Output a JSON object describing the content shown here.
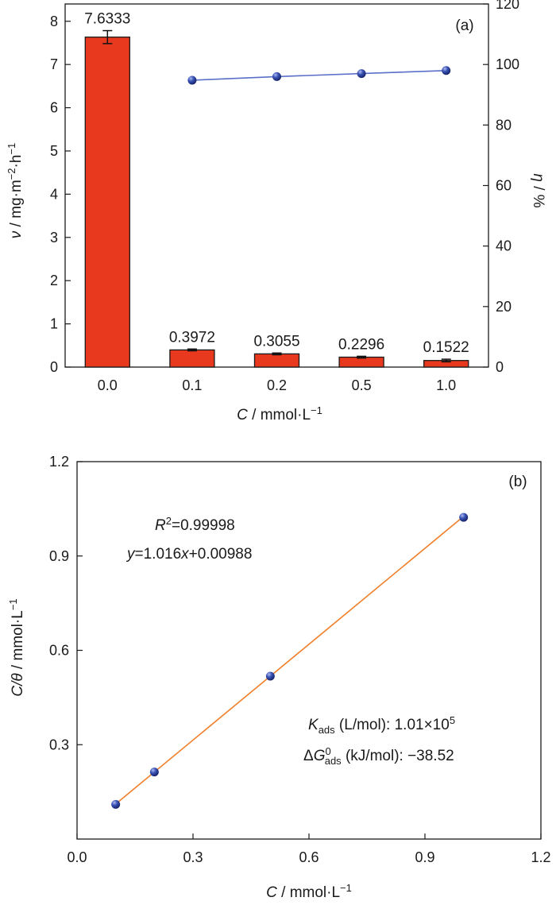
{
  "chart_data": [
    {
      "panel": "(a)",
      "type": "bar",
      "categories": [
        "0.0",
        "0.1",
        "0.2",
        "0.5",
        "1.0"
      ],
      "values": [
        7.6333,
        0.3972,
        0.3055,
        0.2296,
        0.1522
      ],
      "error": [
        0.15,
        0.02,
        0.02,
        0.02,
        0.03
      ],
      "value_labels": [
        "7.6333",
        "0.3972",
        "0.3055",
        "0.2296",
        "0.1522"
      ],
      "bar_color": "#e8381e",
      "xlabel": {
        "symbol": "C",
        "unit": " / mmol·L",
        "exp": "−1"
      },
      "ylabel": {
        "symbol": "ν",
        "unit": " / mg·m",
        "exp1": "−2",
        "mid": "·h",
        "exp2": "−1"
      },
      "ylim": [
        0,
        8.4
      ],
      "yticks": [
        "0",
        "1",
        "2",
        "3",
        "4",
        "5",
        "6",
        "7",
        "8"
      ],
      "secondary": {
        "type": "line",
        "categories": [
          "0.1",
          "0.2",
          "0.5",
          "1.0"
        ],
        "values": [
          94.8,
          96.0,
          97.0,
          98.0
        ],
        "color": "#3a53b5",
        "ylabel": {
          "symbol": "η",
          "unit": " / %"
        },
        "ylim": [
          0,
          120
        ],
        "yticks": [
          "0",
          "20",
          "40",
          "60",
          "80",
          "100",
          "120"
        ]
      }
    },
    {
      "panel": "(b)",
      "type": "scatter",
      "x": [
        0.1,
        0.2,
        0.5,
        1.0
      ],
      "y": [
        0.1103,
        0.2131,
        0.5179,
        1.0229
      ],
      "fit": {
        "slope": 1.016,
        "intercept": 0.00988,
        "color": "#f07f2a"
      },
      "point_color": "#3a53b5",
      "xlim": [
        0,
        1.2
      ],
      "ylim": [
        0,
        1.2
      ],
      "xticks": [
        "0.0",
        "0.3",
        "0.6",
        "0.9",
        "1.2"
      ],
      "yticks": [
        "0.3",
        "0.6",
        "0.9",
        "1.2"
      ],
      "xlabel": {
        "symbol": "C",
        "unit": " / mmol·L",
        "exp": "−1"
      },
      "ylabel": {
        "symbol": "C/θ",
        "unit": " / mmol·L",
        "exp": "−1"
      },
      "annotations": {
        "r2": {
          "sym": "R",
          "sup": "2",
          "value": "=0.99998"
        },
        "equation": {
          "y": "y",
          "mid": "=1.016",
          "x": "x",
          "rest": "+0.00988"
        },
        "kads": {
          "sym": "K",
          "sub": "ads",
          "text": " (L/mol): 1.01×10",
          "sup": "5"
        },
        "dg": {
          "delta": "Δ",
          "sym": "G",
          "sup": "0",
          "sub": "ads",
          "text": " (kJ/mol): −38.52"
        }
      }
    }
  ]
}
